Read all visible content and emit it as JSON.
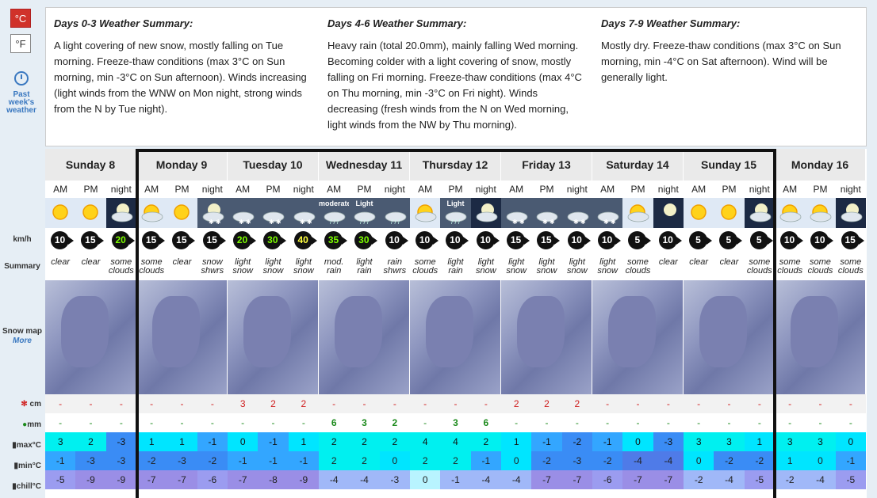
{
  "units": {
    "celsius": "°C",
    "fahrenheit": "°F"
  },
  "past_link": "Past week's weather",
  "labels": {
    "wind": "km/h",
    "summary": "Summary",
    "snowmap": "Snow map",
    "more": "More",
    "snow": "cm",
    "rain": "mm",
    "max": "max°C",
    "min": "min°C",
    "chill": "chill°C"
  },
  "summaries": [
    {
      "title": "Days 0-3 Weather Summary:",
      "text": "A light covering of new snow, mostly falling on Tue morning. Freeze-thaw conditions (max 3°C on Sun morning, min -3°C on Sun afternoon). Winds increasing (light winds from the WNW on Mon night, strong winds from the N by Tue night)."
    },
    {
      "title": "Days 4-6 Weather Summary:",
      "text": "Heavy rain (total 20.0mm), mainly falling Wed morning. Becoming colder with a light covering of snow, mostly falling on Fri morning. Freeze-thaw conditions (max 4°C on Thu morning, min -3°C on Fri night). Winds decreasing (fresh winds from the N on Wed morning, light winds from the NW by Thu morning)."
    },
    {
      "title": "Days 7-9 Weather Summary:",
      "text": "Mostly dry. Freeze-thaw conditions (max 3°C on Sun morning, min -4°C on Sat afternoon). Wind will be generally light."
    }
  ],
  "days": [
    "Sunday 8",
    "Monday 9",
    "Tuesday 10",
    "Wednesday 11",
    "Thursday 12",
    "Friday 13",
    "Saturday 14",
    "Sunday 15",
    "Monday 16"
  ],
  "periods": [
    "AM",
    "PM",
    "night"
  ],
  "icons": [
    "sun",
    "sun",
    "moon-cloud",
    "sun-cloud",
    "sun",
    "moon-snow",
    "snow-cloud",
    "snow-cloud",
    "snow-cloud",
    "rain-cloud",
    "rain-cloud",
    "rain-cloud",
    "sun-cloud",
    "rain-cloud",
    "moon-cloud",
    "snow-cloud",
    "snow-cloud",
    "snow-cloud",
    "snow-cloud",
    "sun-cloud",
    "moon",
    "sun",
    "sun",
    "moon-cloud",
    "sun-cloud",
    "sun-cloud",
    "moon-cloud"
  ],
  "icon_labels": [
    "",
    "",
    "",
    "",
    "",
    "",
    "",
    "",
    "",
    "moderate",
    "Light",
    "",
    "",
    "Light",
    "",
    "",
    "",
    "",
    "",
    "",
    "",
    "",
    "",
    "",
    "",
    "",
    ""
  ],
  "wind": [
    "10",
    "15",
    "20",
    "15",
    "15",
    "15",
    "20",
    "30",
    "40",
    "35",
    "30",
    "10",
    "10",
    "10",
    "10",
    "15",
    "15",
    "10",
    "10",
    "5",
    "10",
    "5",
    "5",
    "5",
    "10",
    "10",
    "15"
  ],
  "wind_colors": [
    "#ffffff",
    "#ffffff",
    "#7CFC00",
    "#ffffff",
    "#ffffff",
    "#ffffff",
    "#7CFC00",
    "#7CFC00",
    "#ffff40",
    "#7CFC00",
    "#7CFC00",
    "#ffffff",
    "#ffffff",
    "#ffffff",
    "#ffffff",
    "#ffffff",
    "#ffffff",
    "#ffffff",
    "#ffffff",
    "#ffffff",
    "#ffffff",
    "#ffffff",
    "#ffffff",
    "#ffffff",
    "#ffffff",
    "#ffffff",
    "#ffffff"
  ],
  "summary_text": [
    [
      "clear"
    ],
    [
      "clear"
    ],
    [
      "some",
      "clouds"
    ],
    [
      "some",
      "clouds"
    ],
    [
      "clear"
    ],
    [
      "snow",
      "shwrs"
    ],
    [
      "light",
      "snow"
    ],
    [
      "light",
      "snow"
    ],
    [
      "light",
      "snow"
    ],
    [
      "mod.",
      "rain"
    ],
    [
      "light",
      "rain"
    ],
    [
      "rain",
      "shwrs"
    ],
    [
      "some",
      "clouds"
    ],
    [
      "light",
      "rain"
    ],
    [
      "light",
      "snow"
    ],
    [
      "light",
      "snow"
    ],
    [
      "light",
      "snow"
    ],
    [
      "light",
      "snow"
    ],
    [
      "light",
      "snow"
    ],
    [
      "some",
      "clouds"
    ],
    [
      "clear"
    ],
    [
      "clear"
    ],
    [
      "clear"
    ],
    [
      "some",
      "clouds"
    ],
    [
      "some",
      "clouds"
    ],
    [
      "some",
      "clouds"
    ],
    [
      "some",
      "clouds"
    ]
  ],
  "snow": [
    "-",
    "-",
    "-",
    "-",
    "-",
    "-",
    "3",
    "2",
    "2",
    "-",
    "-",
    "-",
    "-",
    "-",
    "-",
    "2",
    "2",
    "2",
    "-",
    "-",
    "-",
    "-",
    "-",
    "-",
    "-",
    "-",
    "-"
  ],
  "rain": [
    "-",
    "-",
    "-",
    "-",
    "-",
    "-",
    "-",
    "-",
    "-",
    "6",
    "3",
    "2",
    "-",
    "3",
    "6",
    "-",
    "-",
    "-",
    "-",
    "-",
    "-",
    "-",
    "-",
    "-",
    "-",
    "-",
    "-"
  ],
  "max": [
    "3",
    "2",
    "-3",
    "1",
    "1",
    "-1",
    "0",
    "-1",
    "1",
    "2",
    "2",
    "2",
    "4",
    "4",
    "2",
    "1",
    "-1",
    "-2",
    "-1",
    "0",
    "-3",
    "3",
    "3",
    "1",
    "3",
    "3",
    "0"
  ],
  "min": [
    "-1",
    "-3",
    "-3",
    "-2",
    "-3",
    "-2",
    "-1",
    "-1",
    "-1",
    "2",
    "2",
    "0",
    "2",
    "2",
    "-1",
    "0",
    "-2",
    "-3",
    "-2",
    "-4",
    "-4",
    "0",
    "-2",
    "-2",
    "1",
    "0",
    "-1"
  ],
  "chill": [
    "-5",
    "-9",
    "-9",
    "-7",
    "-7",
    "-6",
    "-7",
    "-8",
    "-9",
    "-4",
    "-4",
    "-3",
    "0",
    "-1",
    "-4",
    "-4",
    "-7",
    "-7",
    "-6",
    "-7",
    "-7",
    "-2",
    "-4",
    "-5",
    "-2",
    "-4",
    "-5"
  ]
}
